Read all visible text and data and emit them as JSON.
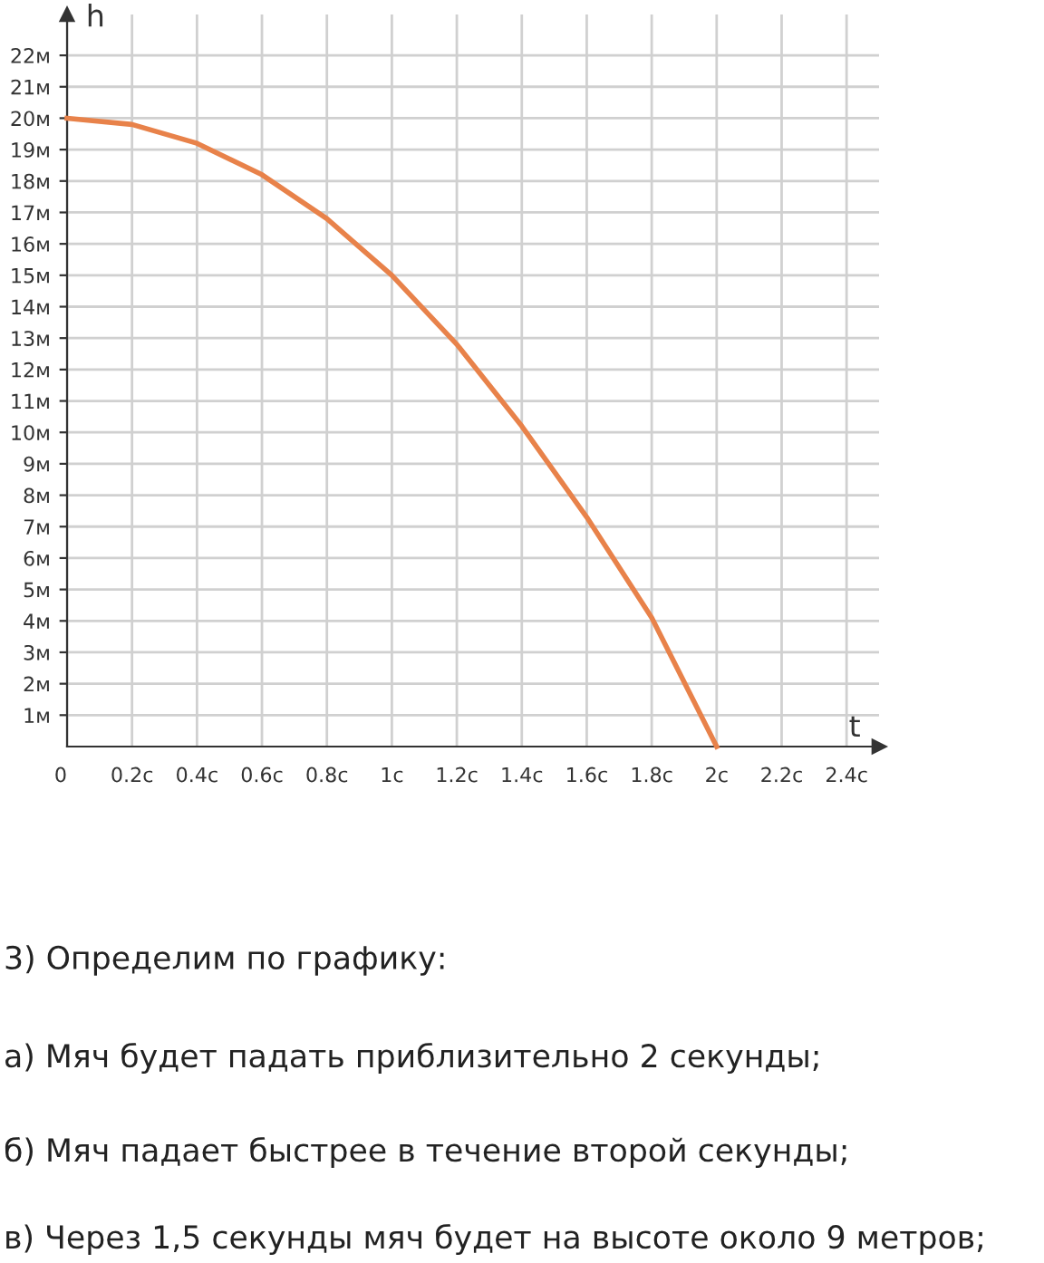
{
  "chart_data": {
    "type": "line",
    "xlabel": "t",
    "ylabel": "h",
    "x": [
      0,
      0.2,
      0.4,
      0.6,
      0.8,
      1.0,
      1.2,
      1.4,
      1.6,
      1.8,
      2.0
    ],
    "series": [
      {
        "color": "#e8824a",
        "values": [
          20,
          19.8,
          19.2,
          18.2,
          16.8,
          15.0,
          12.8,
          10.2,
          7.3,
          4.1,
          0
        ]
      }
    ],
    "xlim": [
      0,
      2.5
    ],
    "ylim": [
      0,
      23.3
    ],
    "xticks": [
      {
        "value": 0,
        "label": "0"
      },
      {
        "value": 0.2,
        "label": "0.2с"
      },
      {
        "value": 0.4,
        "label": "0.4с"
      },
      {
        "value": 0.6,
        "label": "0.6с"
      },
      {
        "value": 0.8,
        "label": "0.8с"
      },
      {
        "value": 1,
        "label": "1с"
      },
      {
        "value": 1.2,
        "label": "1.2с"
      },
      {
        "value": 1.4,
        "label": "1.4с"
      },
      {
        "value": 1.6,
        "label": "1.6с"
      },
      {
        "value": 1.8,
        "label": "1.8с"
      },
      {
        "value": 2,
        "label": "2с"
      },
      {
        "value": 2.2,
        "label": "2.2с"
      },
      {
        "value": 2.4,
        "label": "2.4с"
      }
    ],
    "yticks": [
      {
        "value": 1,
        "label": "1м"
      },
      {
        "value": 2,
        "label": "2м"
      },
      {
        "value": 3,
        "label": "3м"
      },
      {
        "value": 4,
        "label": "4м"
      },
      {
        "value": 5,
        "label": "5м"
      },
      {
        "value": 6,
        "label": "6м"
      },
      {
        "value": 7,
        "label": "7м"
      },
      {
        "value": 8,
        "label": "8м"
      },
      {
        "value": 9,
        "label": "9м"
      },
      {
        "value": 10,
        "label": "10м"
      },
      {
        "value": 11,
        "label": "11м"
      },
      {
        "value": 12,
        "label": "12м"
      },
      {
        "value": 13,
        "label": "13м"
      },
      {
        "value": 14,
        "label": "14м"
      },
      {
        "value": 15,
        "label": "15м"
      },
      {
        "value": 16,
        "label": "16м"
      },
      {
        "value": 17,
        "label": "17м"
      },
      {
        "value": 18,
        "label": "18м"
      },
      {
        "value": 19,
        "label": "19м"
      },
      {
        "value": 20,
        "label": "20м"
      },
      {
        "value": 21,
        "label": "21м"
      },
      {
        "value": 22,
        "label": "22м"
      }
    ],
    "grid": true,
    "marker": "none",
    "line_style": "solid",
    "annotations": [
      "3) Определим по графику:",
      "а) Мяч будет падать приблизительно 2 секунды;",
      "б) Мяч падает быстрее в течение второй секунды;",
      "в) Через 1,5 секунды мяч будет на высоте около 9 метров;"
    ]
  }
}
